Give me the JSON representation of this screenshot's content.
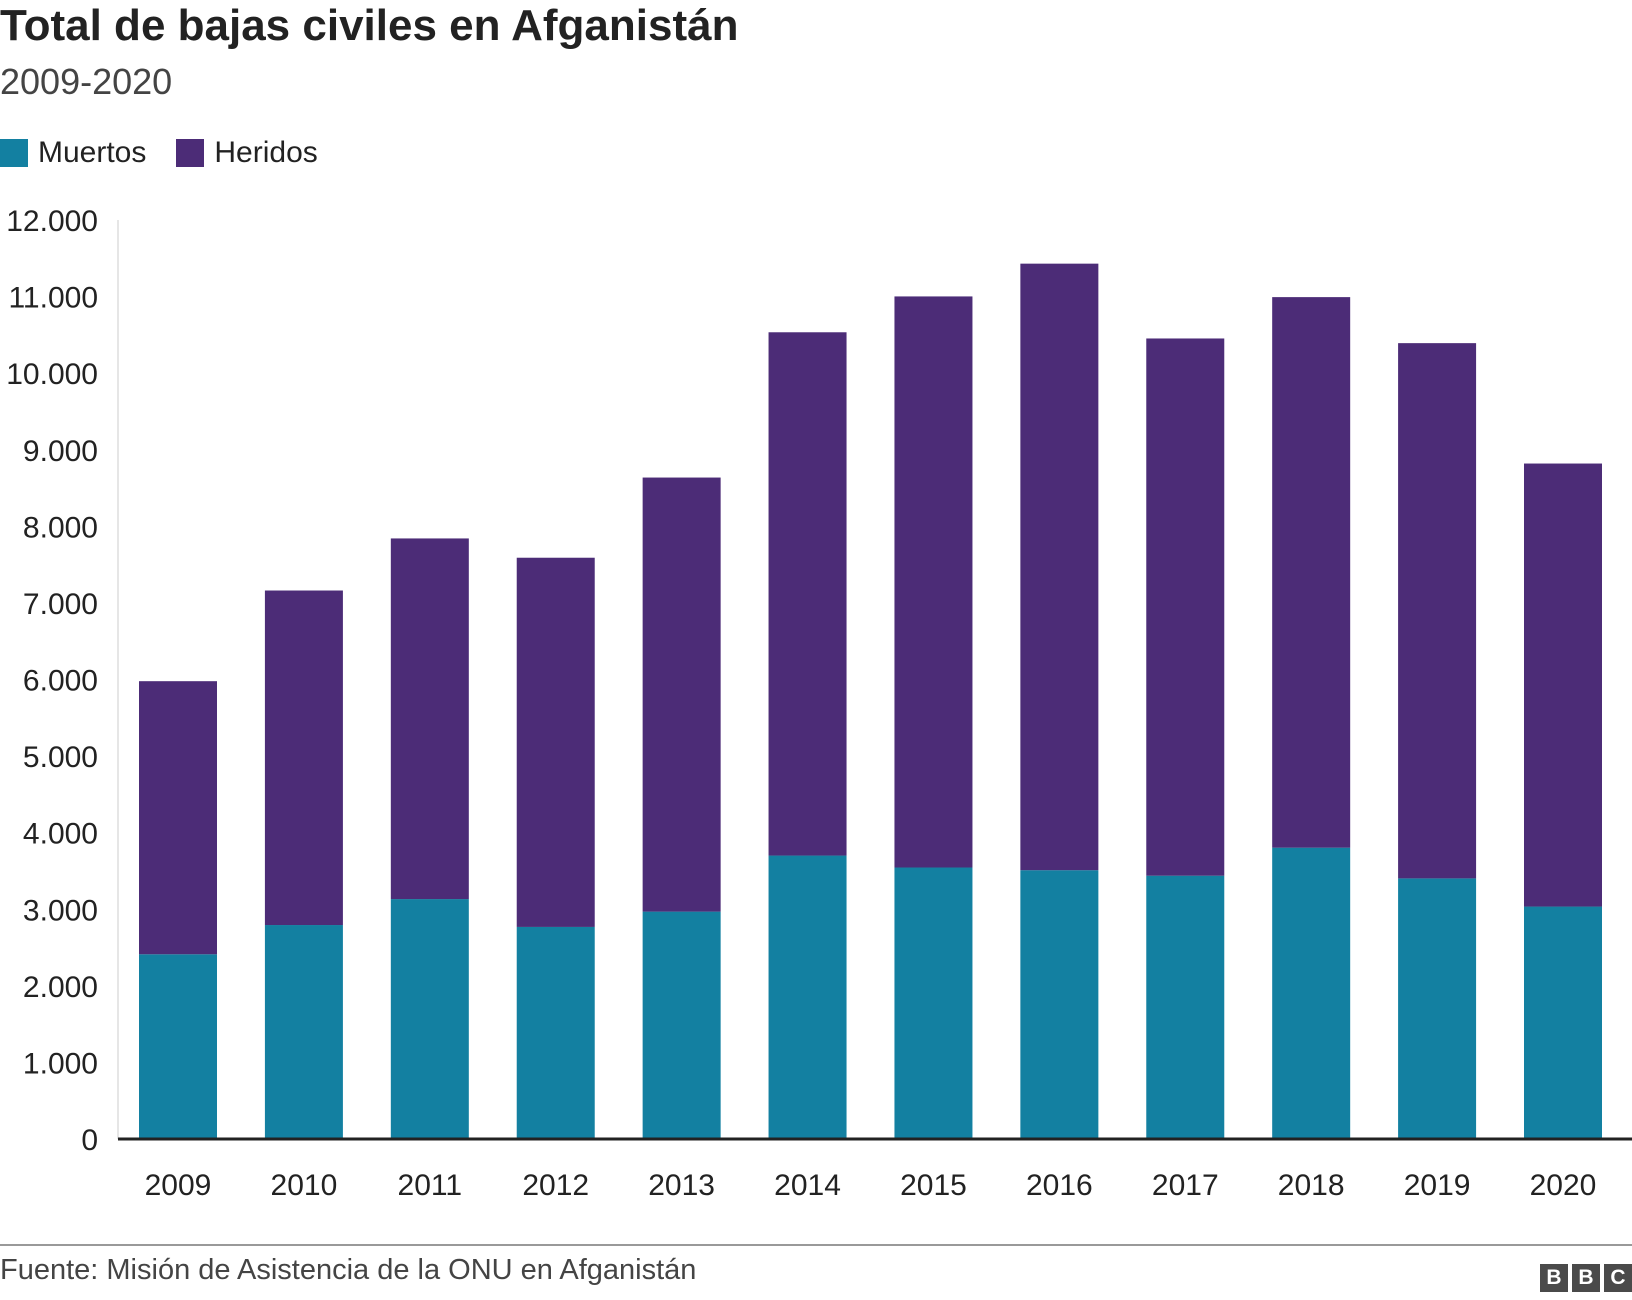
{
  "chart_data": {
    "type": "bar",
    "stacked": true,
    "title": "Total de bajas civiles en Afganistán",
    "subtitle": "2009-2020",
    "categories": [
      "2009",
      "2010",
      "2011",
      "2012",
      "2013",
      "2014",
      "2015",
      "2016",
      "2017",
      "2018",
      "2019",
      "2020"
    ],
    "series": [
      {
        "name": "Muertos",
        "color": "#1380a1",
        "values": [
          2412,
          2794,
          3133,
          2769,
          2969,
          3701,
          3545,
          3510,
          3438,
          3804,
          3403,
          3035
        ]
      },
      {
        "name": "Heridos",
        "color": "#4c2c77",
        "values": [
          3566,
          4368,
          4709,
          4821,
          5668,
          6833,
          7457,
          7920,
          7015,
          7189,
          6989,
          5785
        ]
      }
    ],
    "ylim": [
      0,
      12000
    ],
    "yticks": [
      0,
      1000,
      2000,
      3000,
      4000,
      5000,
      6000,
      7000,
      8000,
      9000,
      10000,
      11000,
      12000
    ],
    "ytick_labels": [
      "0",
      "1.000",
      "2.000",
      "3.000",
      "4.000",
      "5.000",
      "6.000",
      "7.000",
      "8.000",
      "9.000",
      "10.000",
      "11.000",
      "12.000"
    ],
    "legend_position": "top-left",
    "grid": false,
    "source": "Fuente: Misión de Asistencia de la ONU en Afganistán"
  },
  "logo": {
    "letters": [
      "B",
      "B",
      "C"
    ]
  }
}
